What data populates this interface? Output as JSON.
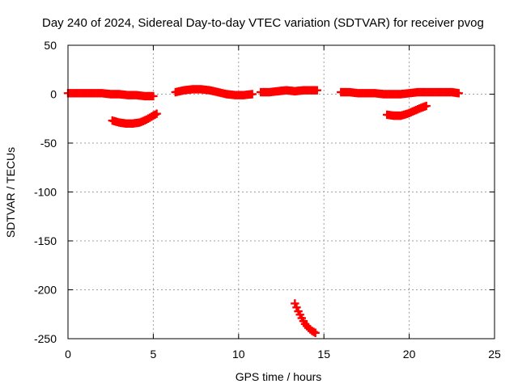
{
  "chart_data": {
    "type": "scatter",
    "title": "Day 240 of 2024, Sidereal Day-to-day VTEC variation (SDTVAR) for receiver pvog",
    "xlabel": "GPS time / hours",
    "ylabel": "SDTVAR / TECUs",
    "xlim": [
      0,
      25
    ],
    "ylim": [
      -250,
      50
    ],
    "xticks": [
      0,
      5,
      10,
      15,
      20,
      25
    ],
    "yticks": [
      50,
      0,
      -50,
      -100,
      -150,
      -200,
      -250
    ],
    "xtick_labels": [
      "0",
      "5",
      "10",
      "15",
      "20",
      "25"
    ],
    "ytick_labels": [
      "50",
      "0",
      "-50",
      "-100",
      "-150",
      "-200",
      "-250"
    ],
    "grid": true,
    "marker_color": "#ff0000",
    "series": [
      {
        "name": "seg1",
        "x": [
          0.0,
          0.5,
          1.0,
          1.5,
          2.0,
          2.5,
          3.0,
          3.5,
          4.0,
          4.5,
          5.0
        ],
        "y": [
          1,
          1,
          1,
          1,
          1,
          0,
          0,
          -1,
          -1,
          -2,
          -2
        ]
      },
      {
        "name": "seg2",
        "x": [
          2.6,
          3.0,
          3.4,
          3.8,
          4.2,
          4.6,
          5.0,
          5.2
        ],
        "y": [
          -27,
          -29,
          -30,
          -30,
          -29,
          -26,
          -22,
          -20
        ]
      },
      {
        "name": "seg3",
        "x": [
          6.3,
          6.8,
          7.3,
          7.8,
          8.3,
          8.8,
          9.3,
          9.8,
          10.3,
          10.8
        ],
        "y": [
          2,
          4,
          5,
          5,
          4,
          2,
          0,
          -1,
          -1,
          0
        ]
      },
      {
        "name": "seg4",
        "x": [
          11.3,
          11.8,
          12.3,
          12.8,
          13.3,
          13.8,
          14.3,
          14.6
        ],
        "y": [
          2,
          2,
          3,
          4,
          3,
          4,
          4,
          4
        ]
      },
      {
        "name": "seg5",
        "x": [
          13.3,
          13.5,
          13.7,
          13.9,
          14.1,
          14.3,
          14.5
        ],
        "y": [
          -214,
          -222,
          -229,
          -235,
          -239,
          -242,
          -244
        ]
      },
      {
        "name": "seg6",
        "x": [
          16.0,
          16.5,
          17.0,
          17.5,
          18.0,
          18.5,
          19.0,
          19.5,
          20.0,
          20.5,
          21.0,
          21.5,
          22.0,
          22.5,
          22.9
        ],
        "y": [
          2,
          2,
          1,
          1,
          1,
          0,
          0,
          0,
          1,
          2,
          2,
          2,
          2,
          2,
          1
        ]
      },
      {
        "name": "seg7",
        "x": [
          18.7,
          19.1,
          19.5,
          19.9,
          20.3,
          20.7,
          21.0
        ],
        "y": [
          -21,
          -22,
          -22,
          -20,
          -17,
          -14,
          -12
        ]
      }
    ]
  }
}
